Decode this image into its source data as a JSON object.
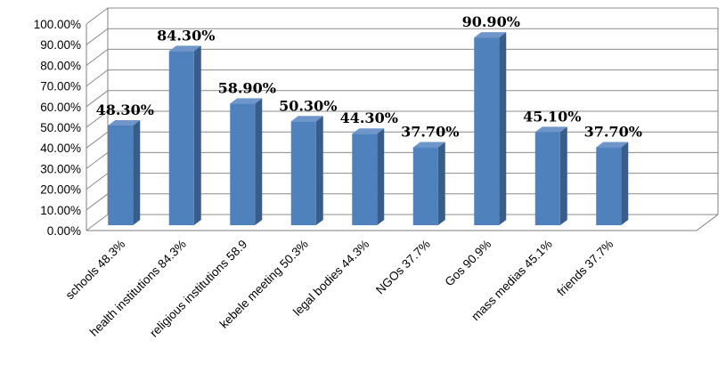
{
  "chart_data": {
    "type": "bar",
    "categories": [
      "schools 48.3%",
      "health institutions 84.3%",
      "religious institutions 58.9",
      "kebele meeting 50.3%",
      "legal bodies 44.3%",
      "NGOs 37.7%",
      "Gos 90.9%",
      "mass medias 45.1%",
      "friends 37.7%"
    ],
    "values": [
      48.3,
      84.3,
      58.9,
      50.3,
      44.3,
      37.7,
      90.9,
      45.1,
      37.7
    ],
    "data_labels": [
      "48.30%",
      "84.30%",
      "58.90%",
      "50.30%",
      "44.30%",
      "37.70%",
      "90.90%",
      "45.10%",
      "37.70%"
    ],
    "y_ticks": [
      "0.00%",
      "10.00%",
      "20.00%",
      "30.00%",
      "40.00%",
      "50.00%",
      "60.00%",
      "70.00%",
      "80.00%",
      "90.00%",
      "100.00%"
    ],
    "ylim": [
      0,
      100
    ],
    "grid": true,
    "legend": "none",
    "style": "3d-column",
    "colors": {
      "bar_front": "#4f81bd",
      "bar_side": "#385d8a",
      "bar_top": "#6e96cb"
    }
  }
}
